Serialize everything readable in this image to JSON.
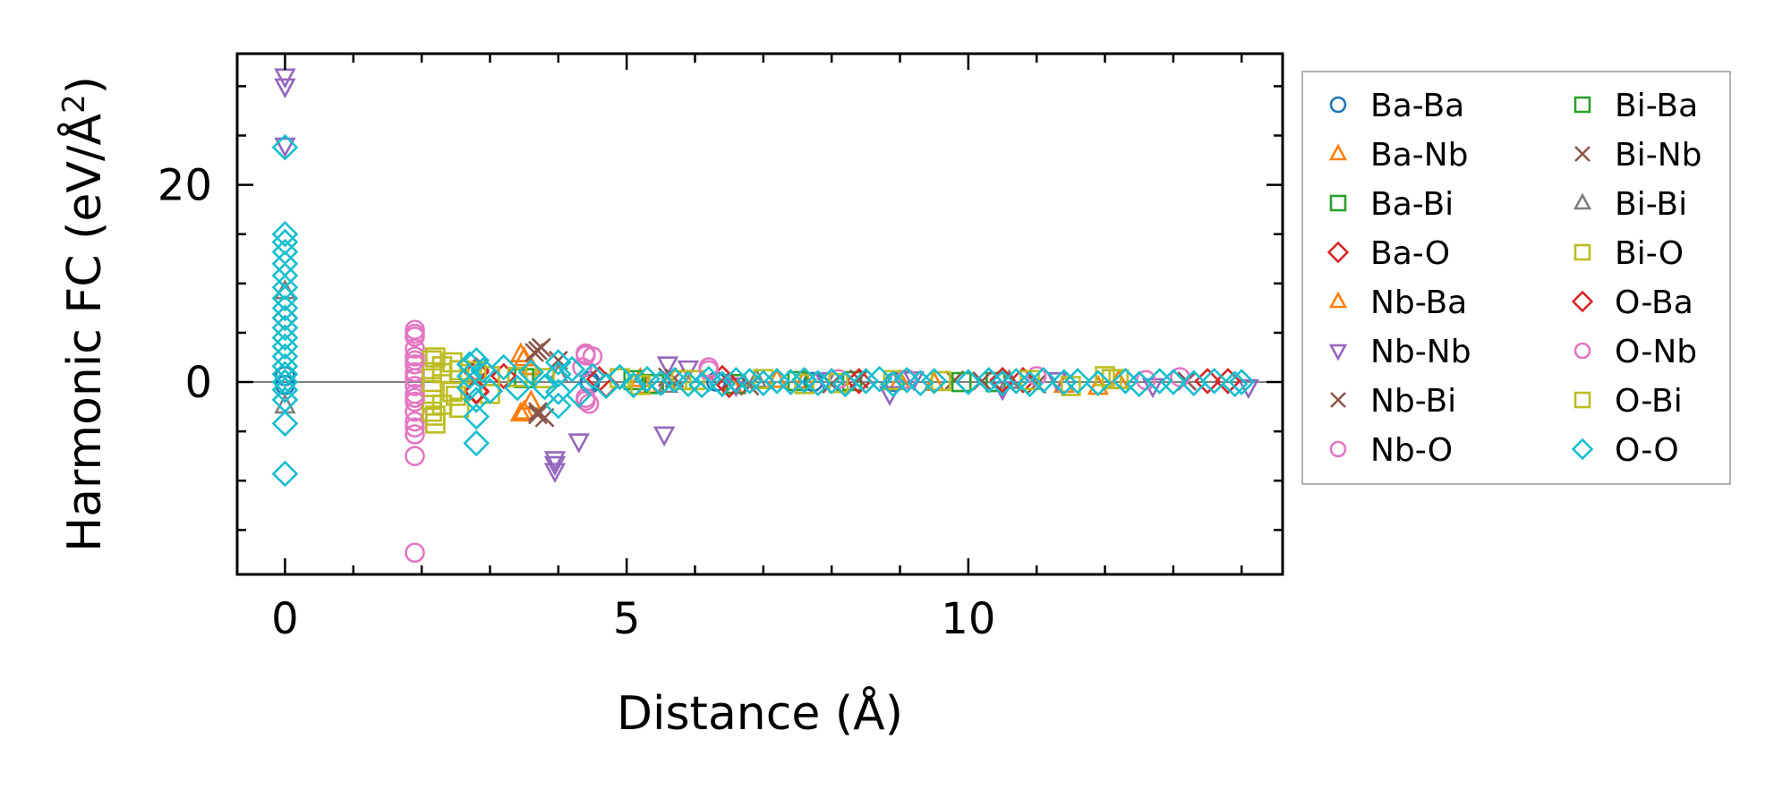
{
  "chart_data": {
    "type": "scatter",
    "title": "",
    "xlabel": "Distance (Å)",
    "ylabel_main": "Harmonic FC (eV/Å",
    "ylabel_sup": "2",
    "ylabel_close": ")",
    "xlim": [
      -0.7,
      14.6
    ],
    "ylim": [
      -19.5,
      33.3
    ],
    "xticks": [
      0,
      5,
      10
    ],
    "xtick_labels": [
      "0",
      "5",
      "10"
    ],
    "yticks": [
      0,
      20
    ],
    "ytick_labels": [
      "0",
      "20"
    ],
    "x_minor_step": 1,
    "y_minor_step": 5,
    "zero_line": true,
    "legend_position": "outside-right",
    "series": [
      {
        "name": "Ba-Ba",
        "color": "#1f77b4",
        "marker": "circle",
        "points": [
          [
            0,
            0.6
          ],
          [
            0,
            -0.3
          ],
          [
            4.46,
            0.1
          ],
          [
            4.46,
            -0.2
          ],
          [
            6.31,
            0.05
          ],
          [
            7.73,
            0.02
          ],
          [
            8.92,
            0.0
          ]
        ]
      },
      {
        "name": "Ba-Nb",
        "color": "#ff7f0e",
        "marker": "triangle-up",
        "points": [
          [
            3.45,
            2.8
          ],
          [
            3.45,
            -3.2
          ],
          [
            3.6,
            1.5
          ],
          [
            3.6,
            -2.0
          ],
          [
            5.2,
            0.3
          ],
          [
            6.55,
            -0.4
          ],
          [
            7.6,
            0.15
          ],
          [
            9.0,
            0.1
          ],
          [
            11.4,
            -0.3
          ],
          [
            11.9,
            -0.5
          ]
        ]
      },
      {
        "name": "Ba-Bi",
        "color": "#2ca02c",
        "marker": "square",
        "points": [
          [
            3.5,
            0.4
          ],
          [
            5.1,
            0.2
          ],
          [
            6.6,
            -0.2
          ],
          [
            8.3,
            0.1
          ],
          [
            10.4,
            0.0
          ]
        ]
      },
      {
        "name": "Ba-O",
        "color": "#d62728",
        "marker": "diamond",
        "points": [
          [
            0,
            6.5
          ],
          [
            2.8,
            1.2
          ],
          [
            2.8,
            -1.0
          ],
          [
            3.2,
            0.6
          ],
          [
            4.7,
            -0.3
          ],
          [
            6.4,
            0.4
          ],
          [
            8.2,
            -0.2
          ],
          [
            10.8,
            0.2
          ],
          [
            13.5,
            0.1
          ]
        ]
      },
      {
        "name": "Nb-Ba",
        "color": "#ff7f0e",
        "marker": "triangle-up",
        "points": [
          [
            3.5,
            2.4
          ],
          [
            3.5,
            -3.0
          ],
          [
            5.3,
            -0.4
          ],
          [
            7.2,
            0.2
          ],
          [
            9.5,
            -0.1
          ],
          [
            12.2,
            0.1
          ]
        ]
      },
      {
        "name": "Nb-Nb",
        "color": "#9467bd",
        "marker": "triangle-down",
        "points": [
          [
            0,
            31.0
          ],
          [
            0,
            30.0
          ],
          [
            0,
            24.0
          ],
          [
            3.95,
            -8.3
          ],
          [
            3.95,
            -9.0
          ],
          [
            3.95,
            -7.8
          ],
          [
            4.3,
            -6.0
          ],
          [
            5.55,
            -5.3
          ],
          [
            5.6,
            1.8
          ],
          [
            5.9,
            1.4
          ],
          [
            6.6,
            -0.3
          ],
          [
            7.9,
            0.2
          ],
          [
            8.85,
            -1.2
          ],
          [
            9.2,
            0.3
          ],
          [
            10.5,
            -0.7
          ],
          [
            11.3,
            0.2
          ],
          [
            12.7,
            -0.4
          ],
          [
            14.1,
            -0.5
          ]
        ]
      },
      {
        "name": "Nb-Bi",
        "color": "#8c564b",
        "marker": "x",
        "points": [
          [
            3.7,
            3.2
          ],
          [
            3.75,
            3.5
          ],
          [
            3.7,
            -3.3
          ],
          [
            3.8,
            -3.6
          ],
          [
            4.0,
            2.2
          ],
          [
            5.6,
            0.5
          ],
          [
            6.8,
            -0.4
          ],
          [
            8.4,
            0.3
          ],
          [
            9.8,
            0.2
          ],
          [
            11.0,
            -0.2
          ],
          [
            13.2,
            0.1
          ]
        ]
      },
      {
        "name": "Nb-O",
        "color": "#e377c2",
        "marker": "circle",
        "points": [
          [
            1.9,
            5.3
          ],
          [
            1.9,
            4.6
          ],
          [
            1.9,
            3.4
          ],
          [
            1.9,
            2.6
          ],
          [
            1.9,
            1.8
          ],
          [
            1.9,
            1.0
          ],
          [
            1.9,
            0.4
          ],
          [
            1.9,
            -0.4
          ],
          [
            1.9,
            -1.2
          ],
          [
            1.9,
            -2.0
          ],
          [
            1.9,
            -3.0
          ],
          [
            1.9,
            -4.0
          ],
          [
            1.9,
            -5.3
          ],
          [
            1.9,
            -7.5
          ],
          [
            1.9,
            -17.3
          ],
          [
            4.4,
            2.9
          ],
          [
            4.5,
            2.6
          ],
          [
            4.35,
            1.5
          ],
          [
            4.4,
            -1.6
          ],
          [
            4.45,
            -2.2
          ],
          [
            6.2,
            1.5
          ],
          [
            8.1,
            0.3
          ],
          [
            11.0,
            0.6
          ],
          [
            13.1,
            0.5
          ]
        ]
      },
      {
        "name": "Bi-Ba",
        "color": "#2ca02c",
        "marker": "square",
        "points": [
          [
            3.4,
            0.5
          ],
          [
            5.4,
            -0.2
          ],
          [
            7.5,
            0.1
          ],
          [
            9.9,
            0.0
          ]
        ]
      },
      {
        "name": "Bi-Nb",
        "color": "#8c564b",
        "marker": "x",
        "points": [
          [
            3.65,
            3.0
          ],
          [
            3.7,
            -3.0
          ],
          [
            5.7,
            0.4
          ],
          [
            8.0,
            -0.2
          ],
          [
            10.2,
            0.1
          ]
        ]
      },
      {
        "name": "Bi-Bi",
        "color": "#7f7f7f",
        "marker": "triangle-up",
        "points": [
          [
            0,
            9.2
          ],
          [
            0,
            -2.4
          ],
          [
            4.0,
            0.7
          ],
          [
            5.6,
            -0.3
          ],
          [
            6.9,
            0.2
          ],
          [
            8.9,
            0.0
          ],
          [
            10.6,
            0.1
          ]
        ]
      },
      {
        "name": "Bi-O",
        "color": "#bcbd22",
        "marker": "square",
        "points": [
          [
            2.15,
            2.2
          ],
          [
            2.15,
            1.0
          ],
          [
            2.15,
            -0.5
          ],
          [
            2.15,
            -1.8
          ],
          [
            2.15,
            -3.0
          ],
          [
            2.2,
            -4.2
          ],
          [
            2.3,
            1.6
          ],
          [
            2.3,
            -2.3
          ],
          [
            2.45,
            2.0
          ],
          [
            2.45,
            -1.0
          ],
          [
            2.55,
            1.2
          ],
          [
            2.55,
            -2.6
          ],
          [
            2.7,
            0.8
          ],
          [
            3.0,
            0.6
          ],
          [
            3.0,
            -1.2
          ],
          [
            3.4,
            0.5
          ],
          [
            4.9,
            0.4
          ],
          [
            5.2,
            -0.3
          ],
          [
            6.0,
            0.2
          ],
          [
            7.0,
            0.3
          ],
          [
            7.6,
            -0.2
          ],
          [
            8.9,
            0.2
          ],
          [
            9.6,
            0.1
          ],
          [
            11.5,
            -0.4
          ],
          [
            12.0,
            0.6
          ],
          [
            12.2,
            0.3
          ]
        ]
      },
      {
        "name": "O-Ba",
        "color": "#d62728",
        "marker": "diamond",
        "points": [
          [
            2.8,
            1.0
          ],
          [
            2.8,
            -0.9
          ],
          [
            4.6,
            0.3
          ],
          [
            6.5,
            -0.3
          ],
          [
            8.4,
            0.1
          ],
          [
            10.5,
            0.2
          ],
          [
            13.8,
            0.1
          ]
        ]
      },
      {
        "name": "O-Nb",
        "color": "#e377c2",
        "marker": "circle",
        "points": [
          [
            1.9,
            4.9
          ],
          [
            1.9,
            2.2
          ],
          [
            1.9,
            -1.6
          ],
          [
            1.9,
            -4.6
          ],
          [
            4.4,
            2.7
          ],
          [
            4.4,
            -1.9
          ],
          [
            6.2,
            1.2
          ],
          [
            9.1,
            0.3
          ],
          [
            12.6,
            0.2
          ]
        ]
      },
      {
        "name": "O-Bi",
        "color": "#bcbd22",
        "marker": "square",
        "points": [
          [
            2.2,
            2.5
          ],
          [
            2.2,
            -3.4
          ],
          [
            2.3,
            0.9
          ],
          [
            2.5,
            -1.4
          ],
          [
            2.8,
            1.1
          ],
          [
            3.8,
            0.4
          ],
          [
            5.8,
            0.2
          ],
          [
            8.1,
            -0.1
          ],
          [
            10.9,
            0.2
          ],
          [
            12.1,
            0.3
          ]
        ]
      },
      {
        "name": "O-O",
        "color": "#17becf",
        "marker": "diamond",
        "points": [
          [
            0,
            23.8
          ],
          [
            0,
            15.0
          ],
          [
            0,
            14.2
          ],
          [
            0,
            13.2
          ],
          [
            0,
            12.0
          ],
          [
            0,
            10.8
          ],
          [
            0,
            9.6
          ],
          [
            0,
            8.5
          ],
          [
            0,
            7.5
          ],
          [
            0,
            6.5
          ],
          [
            0,
            5.5
          ],
          [
            0,
            4.5
          ],
          [
            0,
            3.6
          ],
          [
            0,
            2.6
          ],
          [
            0,
            1.6
          ],
          [
            0,
            0.8
          ],
          [
            0,
            0.0
          ],
          [
            0,
            -0.8
          ],
          [
            0,
            -1.8
          ],
          [
            0,
            -4.2
          ],
          [
            0,
            -9.3
          ],
          [
            2.7,
            1.8
          ],
          [
            2.7,
            0.6
          ],
          [
            2.7,
            -0.6
          ],
          [
            2.8,
            2.2
          ],
          [
            2.8,
            -1.8
          ],
          [
            2.8,
            -3.5
          ],
          [
            2.8,
            -6.2
          ],
          [
            2.9,
            1.2
          ],
          [
            3.0,
            -0.9
          ],
          [
            3.2,
            1.5
          ],
          [
            3.4,
            -0.6
          ],
          [
            3.6,
            1.0
          ],
          [
            3.8,
            -0.5
          ],
          [
            4.0,
            2.0
          ],
          [
            4.0,
            0.8
          ],
          [
            4.0,
            -1.0
          ],
          [
            4.0,
            -2.4
          ],
          [
            4.2,
            1.3
          ],
          [
            4.3,
            -1.3
          ],
          [
            4.5,
            0.6
          ],
          [
            4.7,
            -0.4
          ],
          [
            4.9,
            0.5
          ],
          [
            5.1,
            -0.3
          ],
          [
            5.3,
            0.3
          ],
          [
            5.5,
            -0.1
          ],
          [
            5.7,
            0.2
          ],
          [
            5.9,
            -0.2
          ],
          [
            6.1,
            -0.3
          ],
          [
            6.2,
            0.3
          ],
          [
            6.4,
            -0.2
          ],
          [
            6.6,
            0.2
          ],
          [
            6.8,
            0.1
          ],
          [
            7.0,
            -0.1
          ],
          [
            7.2,
            0.1
          ],
          [
            7.4,
            0.0
          ],
          [
            7.6,
            0.2
          ],
          [
            7.8,
            -0.1
          ],
          [
            8.0,
            0.1
          ],
          [
            8.2,
            -0.2
          ],
          [
            8.5,
            0.1
          ],
          [
            8.7,
            0.3
          ],
          [
            8.9,
            -0.2
          ],
          [
            9.1,
            0.2
          ],
          [
            9.3,
            -0.1
          ],
          [
            9.5,
            0.1
          ],
          [
            10.0,
            0.0
          ],
          [
            10.3,
            0.2
          ],
          [
            10.5,
            -0.1
          ],
          [
            10.7,
            0.1
          ],
          [
            10.9,
            -0.2
          ],
          [
            11.1,
            0.2
          ],
          [
            11.4,
            0.0
          ],
          [
            11.6,
            0.1
          ],
          [
            11.9,
            -0.1
          ],
          [
            12.3,
            0.1
          ],
          [
            12.5,
            -0.2
          ],
          [
            12.8,
            0.1
          ],
          [
            13.0,
            0.0
          ],
          [
            13.3,
            -0.1
          ],
          [
            13.6,
            0.1
          ],
          [
            13.9,
            -0.2
          ],
          [
            14.0,
            0.0
          ]
        ]
      }
    ]
  }
}
